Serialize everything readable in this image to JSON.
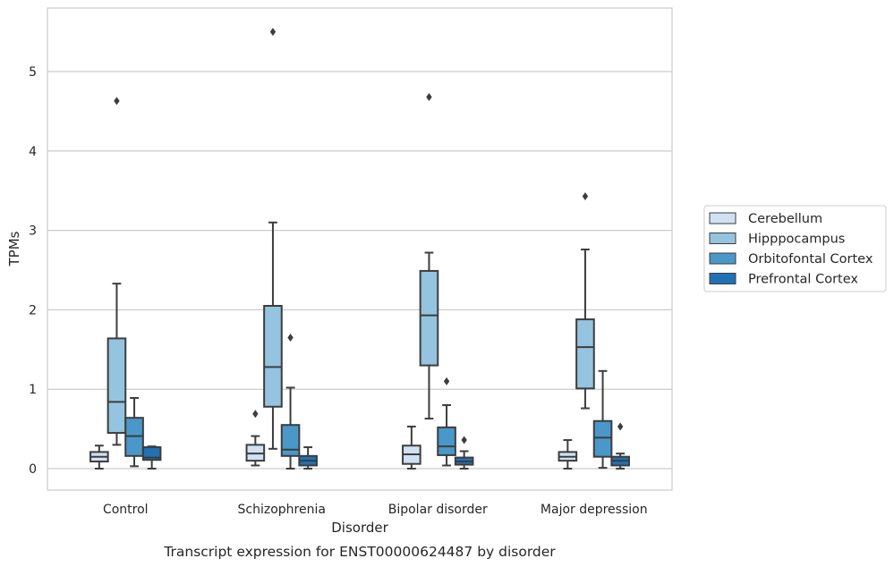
{
  "chart_data": {
    "type": "boxplot",
    "title": "Transcript expression for ENST00000624487 by disorder",
    "xlabel": "Disorder",
    "ylabel": "TPMs",
    "ylim": [
      -0.27,
      5.8
    ],
    "yticks": [
      "0",
      "1",
      "2",
      "3",
      "4",
      "5"
    ],
    "grid": true,
    "legend_position": "right",
    "categories": [
      "Control",
      "Schizophrenia",
      "Bipolar disorder",
      "Major depression"
    ],
    "series": [
      {
        "name": "Cerebellum",
        "color": "#d0e1f2",
        "boxes": [
          {
            "whislo": 0.0,
            "q1": 0.09,
            "med": 0.15,
            "q3": 0.21,
            "whishi": 0.29,
            "fliers": []
          },
          {
            "whislo": 0.04,
            "q1": 0.1,
            "med": 0.19,
            "q3": 0.3,
            "whishi": 0.41,
            "fliers": [
              0.69
            ]
          },
          {
            "whislo": 0.0,
            "q1": 0.06,
            "med": 0.18,
            "q3": 0.29,
            "whishi": 0.53,
            "fliers": []
          },
          {
            "whislo": 0.0,
            "q1": 0.1,
            "med": 0.15,
            "q3": 0.21,
            "whishi": 0.36,
            "fliers": []
          }
        ]
      },
      {
        "name": "Hipppocampus",
        "color": "#94c4df",
        "boxes": [
          {
            "whislo": 0.3,
            "q1": 0.45,
            "med": 0.84,
            "q3": 1.64,
            "whishi": 2.33,
            "fliers": [
              4.63
            ]
          },
          {
            "whislo": 0.25,
            "q1": 0.78,
            "med": 1.28,
            "q3": 2.05,
            "whishi": 3.1,
            "fliers": [
              5.5
            ]
          },
          {
            "whislo": 0.63,
            "q1": 1.3,
            "med": 1.93,
            "q3": 2.49,
            "whishi": 2.72,
            "fliers": [
              4.68
            ]
          },
          {
            "whislo": 0.76,
            "q1": 1.01,
            "med": 1.53,
            "q3": 1.88,
            "whishi": 2.76,
            "fliers": [
              3.43
            ]
          }
        ]
      },
      {
        "name": "Orbitofontal Cortex",
        "color": "#4a98c9",
        "boxes": [
          {
            "whislo": 0.03,
            "q1": 0.16,
            "med": 0.41,
            "q3": 0.64,
            "whishi": 0.89,
            "fliers": []
          },
          {
            "whislo": 0.0,
            "q1": 0.16,
            "med": 0.24,
            "q3": 0.55,
            "whishi": 1.02,
            "fliers": [
              1.65
            ]
          },
          {
            "whislo": 0.04,
            "q1": 0.17,
            "med": 0.28,
            "q3": 0.52,
            "whishi": 0.8,
            "fliers": [
              1.1
            ]
          },
          {
            "whislo": 0.01,
            "q1": 0.15,
            "med": 0.39,
            "q3": 0.6,
            "whishi": 1.23,
            "fliers": []
          }
        ]
      },
      {
        "name": "Prefrontal Cortex",
        "color": "#2171b5",
        "boxes": [
          {
            "whislo": 0.0,
            "q1": 0.11,
            "med": 0.14,
            "q3": 0.27,
            "whishi": 0.28,
            "fliers": []
          },
          {
            "whislo": 0.0,
            "q1": 0.04,
            "med": 0.1,
            "q3": 0.16,
            "whishi": 0.27,
            "fliers": []
          },
          {
            "whislo": 0.0,
            "q1": 0.05,
            "med": 0.09,
            "q3": 0.14,
            "whishi": 0.22,
            "fliers": [
              0.36
            ]
          },
          {
            "whislo": 0.0,
            "q1": 0.04,
            "med": 0.1,
            "q3": 0.15,
            "whishi": 0.19,
            "fliers": [
              0.53
            ]
          }
        ]
      }
    ]
  }
}
